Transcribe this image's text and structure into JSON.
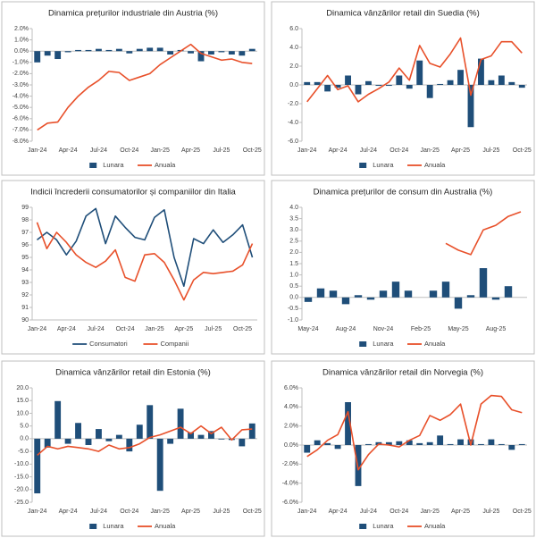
{
  "chart_data": [
    {
      "type": "combo",
      "title": "Dinamica prețurilor industriale din Austria (%)",
      "categories": [
        "Jan-24",
        null,
        null,
        "Apr-24",
        null,
        null,
        "Jul-24",
        null,
        null,
        "Oct-24",
        null,
        null,
        "Jan-25",
        null,
        null,
        "Apr-25",
        null,
        null,
        "Jul-25",
        null,
        null,
        "Oct-25"
      ],
      "series": [
        {
          "name": "Lunara",
          "type": "bar",
          "color": "#1f4e79",
          "values": [
            -1.0,
            -0.4,
            -0.7,
            -0.1,
            0.1,
            0.1,
            0.2,
            0.1,
            0.2,
            -0.2,
            0.2,
            0.3,
            0.3,
            -0.3,
            0.1,
            -0.2,
            -0.9,
            -0.3,
            -0.1,
            -0.3,
            -0.4,
            0.2
          ]
        },
        {
          "name": "Anuala",
          "type": "line",
          "color": "#e8502a",
          "values": [
            -7.0,
            -6.4,
            -6.3,
            -5.0,
            -4.0,
            -3.2,
            -2.6,
            -1.8,
            -1.9,
            -2.6,
            -2.3,
            -2.0,
            -1.2,
            -0.6,
            0.0,
            0.6,
            -0.2,
            -0.5,
            -0.8,
            -0.7,
            -1.0,
            -1.1
          ]
        }
      ],
      "ylim": [
        -8,
        2
      ],
      "yticks": [
        {
          "value": -8,
          "label": "-8.0%"
        },
        {
          "value": -7,
          "label": "-7.0%"
        },
        {
          "value": -6,
          "label": "-6.0%"
        },
        {
          "value": -5,
          "label": "-5.0%"
        },
        {
          "value": -4,
          "label": "-4.0%"
        },
        {
          "value": -3,
          "label": "-3.0%"
        },
        {
          "value": -2,
          "label": "-2.0%"
        },
        {
          "value": -1,
          "label": "-1.0%"
        },
        {
          "value": 0,
          "label": "0.0%"
        },
        {
          "value": 1,
          "label": "1.0%"
        },
        {
          "value": 2,
          "label": "2.0%"
        }
      ],
      "legend": "bottom"
    },
    {
      "type": "combo",
      "title": "Dinamica vânzărilor retail din Suedia (%)",
      "categories": [
        "Jan-24",
        null,
        null,
        "Apr-24",
        null,
        null,
        "Jul-24",
        null,
        null,
        "Oct-24",
        null,
        null,
        "Jan-25",
        null,
        null,
        "Apr-25",
        null,
        null,
        "Jul-25",
        null,
        null,
        "Oct-25"
      ],
      "series": [
        {
          "name": "Lunara",
          "type": "bar",
          "color": "#1f4e79",
          "values": [
            0.3,
            0.3,
            -0.7,
            -0.3,
            1.0,
            -1.0,
            0.4,
            -0.1,
            -0.1,
            1.0,
            -0.4,
            2.6,
            -1.4,
            0.1,
            0.5,
            1.6,
            -4.5,
            2.8,
            0.5,
            1.0,
            0.3,
            -0.3
          ]
        },
        {
          "name": "Anuala",
          "type": "line",
          "color": "#e8502a",
          "values": [
            -1.8,
            -0.4,
            1.0,
            -0.5,
            -0.1,
            -1.8,
            -1.0,
            -0.4,
            0.3,
            1.8,
            0.5,
            4.2,
            2.3,
            1.9,
            3.3,
            5.0,
            -1.1,
            2.7,
            3.1,
            4.6,
            4.6,
            3.4
          ]
        }
      ],
      "ylim": [
        -6,
        6
      ],
      "yticks": [
        {
          "value": -6,
          "label": "-6.0"
        },
        {
          "value": -4,
          "label": "-4.0"
        },
        {
          "value": -2,
          "label": "-2.0"
        },
        {
          "value": 0,
          "label": "0.0"
        },
        {
          "value": 2,
          "label": "2.0"
        },
        {
          "value": 4,
          "label": "4.0"
        },
        {
          "value": 6,
          "label": "6.0"
        }
      ],
      "legend": "bottom"
    },
    {
      "type": "line",
      "title": "Indicii încrederii consumatorilor și companiilor din Italia",
      "categories": [
        "Jan-24",
        null,
        null,
        "Apr-24",
        null,
        null,
        "Jul-24",
        null,
        null,
        "Oct-24",
        null,
        null,
        "Jan-25",
        null,
        null,
        "Apr-25",
        null,
        null,
        "Jul-25",
        null,
        null,
        "Oct-25",
        null
      ],
      "series": [
        {
          "name": "Consumatori",
          "type": "line",
          "color": "#1f4e79",
          "values": [
            96.4,
            97.0,
            96.4,
            95.2,
            96.3,
            98.3,
            98.9,
            96.1,
            98.3,
            97.4,
            96.6,
            96.4,
            98.2,
            98.8,
            95.0,
            92.7,
            96.5,
            96.1,
            97.2,
            96.2,
            96.8,
            97.6,
            95.0
          ]
        },
        {
          "name": "Companii",
          "type": "line",
          "color": "#e8502a",
          "values": [
            97.8,
            95.7,
            97.0,
            96.2,
            95.2,
            94.6,
            94.2,
            94.7,
            95.6,
            93.4,
            93.1,
            95.2,
            95.3,
            94.6,
            93.2,
            91.6,
            93.2,
            93.8,
            93.7,
            93.8,
            93.9,
            94.4,
            96.1
          ]
        }
      ],
      "ylim": [
        90,
        99
      ],
      "yticks": [
        90,
        91,
        92,
        93,
        94,
        95,
        96,
        97,
        98,
        99
      ],
      "legend": "bottom"
    },
    {
      "type": "combo",
      "title": "Dinamica prețurilor de consum din Australia (%)",
      "categories": [
        "May-24",
        null,
        null,
        "Aug-24",
        null,
        null,
        "Nov-24",
        null,
        null,
        "Feb-25",
        null,
        null,
        "May-25",
        null,
        null,
        "Aug-25",
        null,
        null
      ],
      "series": [
        {
          "name": "Lunara",
          "type": "bar",
          "color": "#1f4e79",
          "values": [
            -0.2,
            0.4,
            0.3,
            -0.3,
            0.1,
            -0.1,
            0.3,
            0.7,
            0.3,
            0.0,
            0.3,
            0.7,
            -0.5,
            0.1,
            1.3,
            -0.1,
            0.5,
            null
          ]
        },
        {
          "name": "Anuala",
          "type": "line",
          "color": "#e8502a",
          "values": [
            null,
            null,
            null,
            null,
            null,
            null,
            null,
            null,
            null,
            null,
            null,
            2.4,
            2.1,
            1.9,
            3.0,
            3.2,
            3.6,
            3.8
          ]
        }
      ],
      "ylim": [
        -1,
        4
      ],
      "yticks": [
        {
          "value": -1,
          "label": "-1.0"
        },
        {
          "value": -0.5,
          "label": "-0.5"
        },
        {
          "value": 0,
          "label": "0.0"
        },
        {
          "value": 0.5,
          "label": "0.5"
        },
        {
          "value": 1,
          "label": "1.0"
        },
        {
          "value": 1.5,
          "label": "1.5"
        },
        {
          "value": 2,
          "label": "2.0"
        },
        {
          "value": 2.5,
          "label": "2.5"
        },
        {
          "value": 3,
          "label": "3.0"
        },
        {
          "value": 3.5,
          "label": "3.5"
        },
        {
          "value": 4,
          "label": "4.0"
        }
      ],
      "legend": "bottom"
    },
    {
      "type": "combo",
      "title": "Dinamica vânzărilor retail din Estonia (%)",
      "categories": [
        "Jan-24",
        null,
        null,
        "Apr-24",
        null,
        null,
        "Jul-24",
        null,
        null,
        "Oct-24",
        null,
        null,
        "Jan-25",
        null,
        null,
        "Apr-25",
        null,
        null,
        "Jul-25",
        null,
        null,
        "Oct-25"
      ],
      "series": [
        {
          "name": "Lunara",
          "type": "bar",
          "color": "#1f4e79",
          "values": [
            -21.5,
            -3.5,
            14.8,
            -2.0,
            6.2,
            -2.5,
            3.8,
            -1.0,
            1.5,
            -5.0,
            5.5,
            13.2,
            -20.5,
            -2.0,
            11.8,
            2.5,
            1.5,
            3.0,
            -0.3,
            -0.5,
            -3.0,
            6.0
          ]
        },
        {
          "name": "Anuala",
          "type": "line",
          "color": "#e8502a",
          "values": [
            -6.5,
            -3.0,
            -4.0,
            -3.0,
            -3.5,
            -4.0,
            -5.0,
            -2.5,
            -4.0,
            -3.5,
            -2.0,
            0.5,
            1.5,
            3.0,
            4.5,
            2.0,
            5.0,
            2.0,
            4.5,
            -0.5,
            3.5,
            3.8
          ]
        }
      ],
      "ylim": [
        -25,
        20
      ],
      "yticks": [
        {
          "value": -25,
          "label": "-25.0"
        },
        {
          "value": -20,
          "label": "-20.0"
        },
        {
          "value": -15,
          "label": "-15.0"
        },
        {
          "value": -10,
          "label": "-10.0"
        },
        {
          "value": -5,
          "label": "-5.0"
        },
        {
          "value": 0,
          "label": "0.0"
        },
        {
          "value": 5,
          "label": "5.0"
        },
        {
          "value": 10,
          "label": "10.0"
        },
        {
          "value": 15,
          "label": "15.0"
        },
        {
          "value": 20,
          "label": "20.0"
        }
      ],
      "legend": "bottom"
    },
    {
      "type": "combo",
      "title": "Dinamica vânzărilor retail din Norvegia (%)",
      "categories": [
        "Jan-24",
        null,
        null,
        "Apr-24",
        null,
        null,
        "Jul-24",
        null,
        null,
        "Oct-24",
        null,
        null,
        "Jan-25",
        null,
        null,
        "Apr-25",
        null,
        null,
        "Jul-25",
        null,
        null,
        "Oct-25"
      ],
      "series": [
        {
          "name": "Lunara",
          "type": "bar",
          "color": "#1f4e79",
          "values": [
            -0.8,
            0.5,
            0.2,
            -0.4,
            4.5,
            -4.3,
            0.1,
            0.3,
            0.3,
            0.4,
            0.5,
            0.2,
            0.3,
            1.0,
            0.1,
            0.6,
            0.6,
            0.1,
            0.6,
            0.1,
            -0.5,
            0.1
          ]
        },
        {
          "name": "Anuala",
          "type": "line",
          "color": "#e8502a",
          "values": [
            -1.2,
            -0.5,
            0.5,
            1.1,
            3.5,
            -2.6,
            -1.0,
            0.1,
            0.0,
            -0.2,
            0.5,
            1.0,
            3.1,
            2.6,
            3.2,
            4.3,
            0.0,
            4.3,
            5.2,
            5.1,
            3.7,
            3.4
          ]
        }
      ],
      "ylim": [
        -6,
        6
      ],
      "yticks": [
        {
          "value": -6,
          "label": "-6.0%"
        },
        {
          "value": -4,
          "label": "-4.0%"
        },
        {
          "value": -2,
          "label": "-2.0%"
        },
        {
          "value": 0,
          "label": "0.0%"
        },
        {
          "value": 2,
          "label": "2.0%"
        },
        {
          "value": 4,
          "label": "4.0%"
        },
        {
          "value": 6,
          "label": "6.0%"
        }
      ],
      "legend": "bottom"
    }
  ]
}
